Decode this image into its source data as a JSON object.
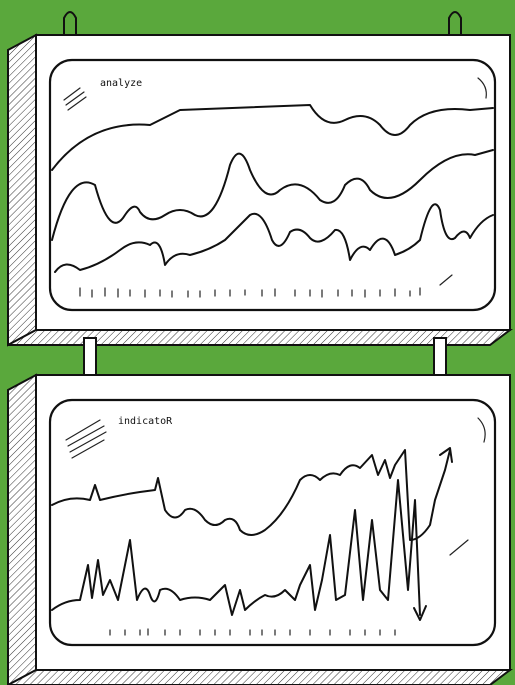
{
  "boards": [
    {
      "label": "analyze"
    },
    {
      "label": "indicatoR"
    }
  ]
}
